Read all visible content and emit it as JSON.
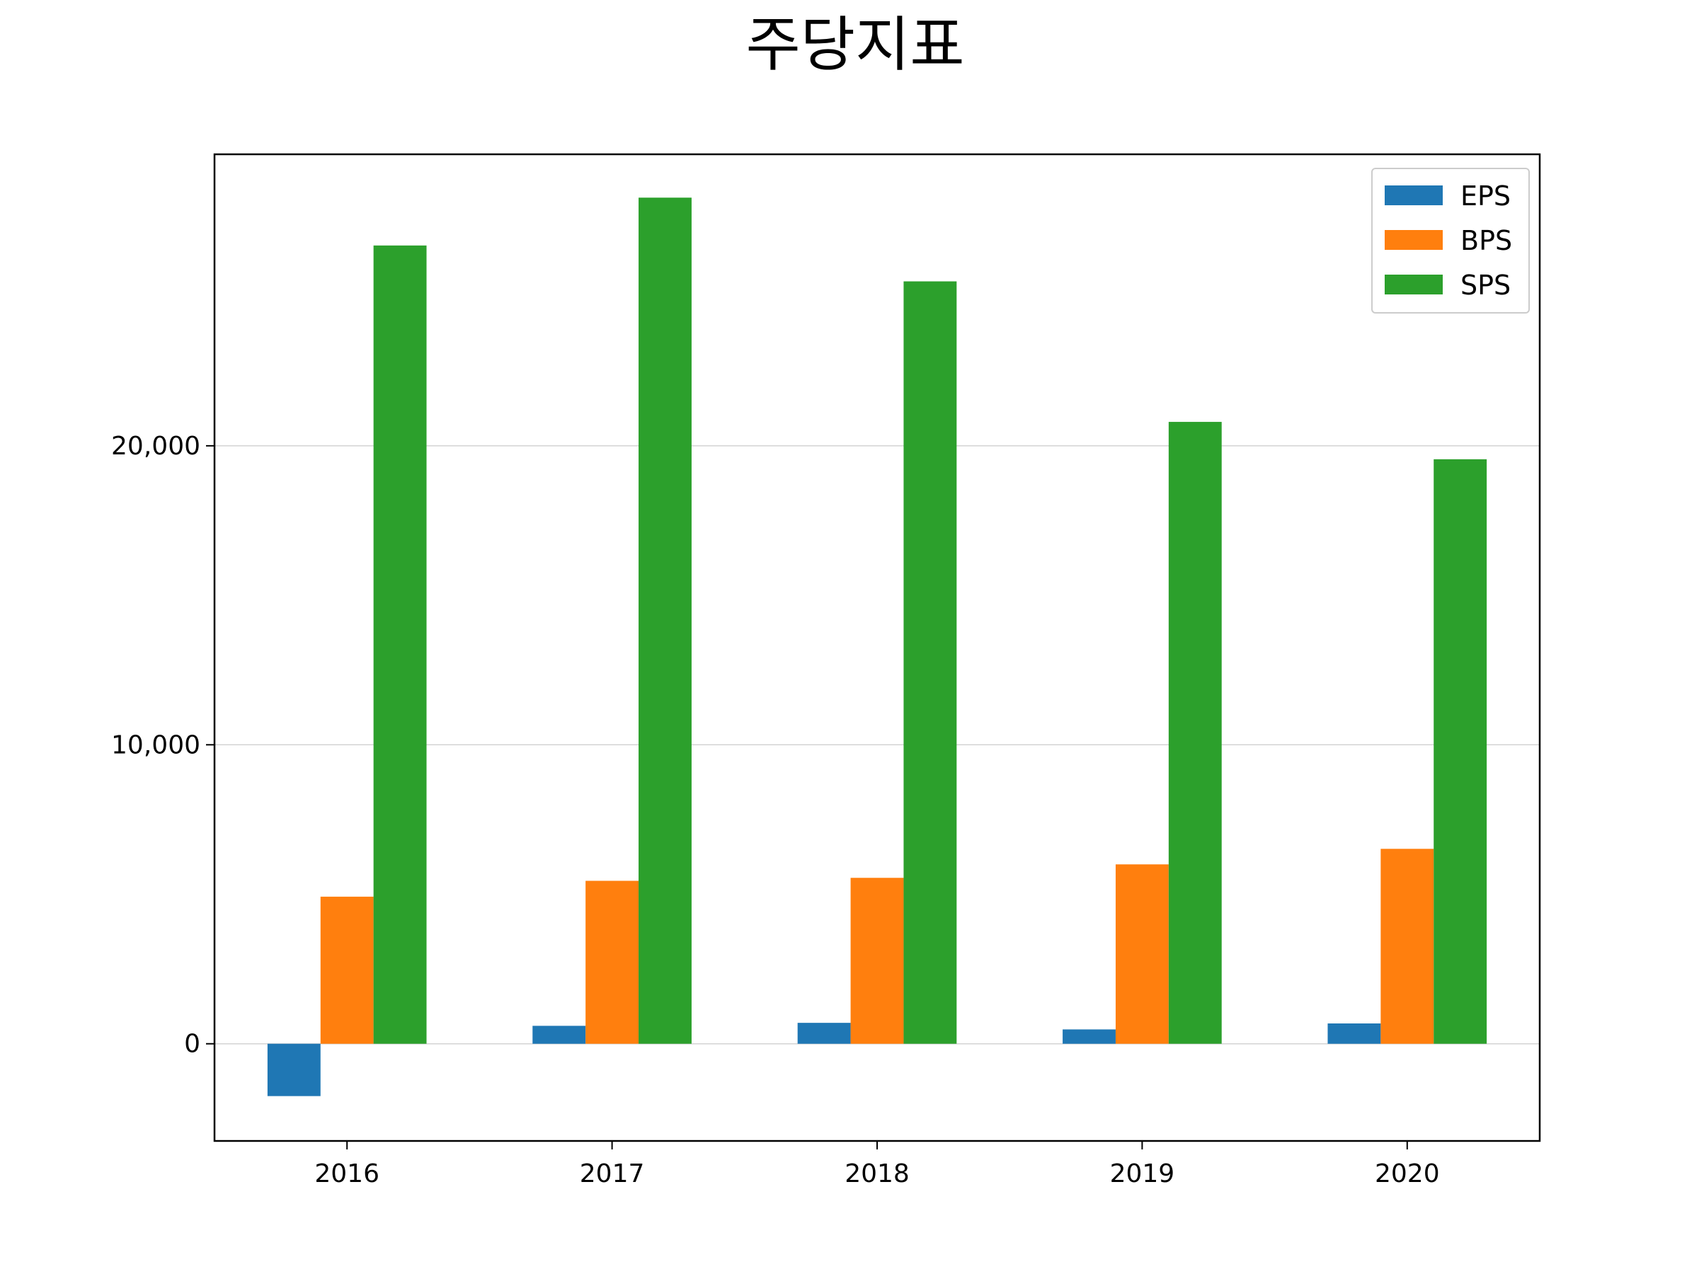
{
  "chart_data": {
    "type": "bar",
    "title": "주당지표",
    "xlabel": "",
    "ylabel": "",
    "categories": [
      "2016",
      "2017",
      "2018",
      "2019",
      "2020"
    ],
    "series": [
      {
        "name": "EPS",
        "color": "#1f77b4",
        "values": [
          -1750,
          600,
          700,
          480,
          680
        ]
      },
      {
        "name": "BPS",
        "color": "#ff7f0e",
        "values": [
          4920,
          5450,
          5550,
          6000,
          6520
        ]
      },
      {
        "name": "SPS",
        "color": "#2ca02c",
        "values": [
          26700,
          28300,
          25500,
          20800,
          19550
        ]
      }
    ],
    "ylim": [
      -3250,
      29750
    ],
    "yticks": [
      0,
      10000,
      20000
    ],
    "ytick_labels": [
      "0",
      "10,000",
      "20,000"
    ],
    "grid": "y",
    "legend": "top-right"
  }
}
